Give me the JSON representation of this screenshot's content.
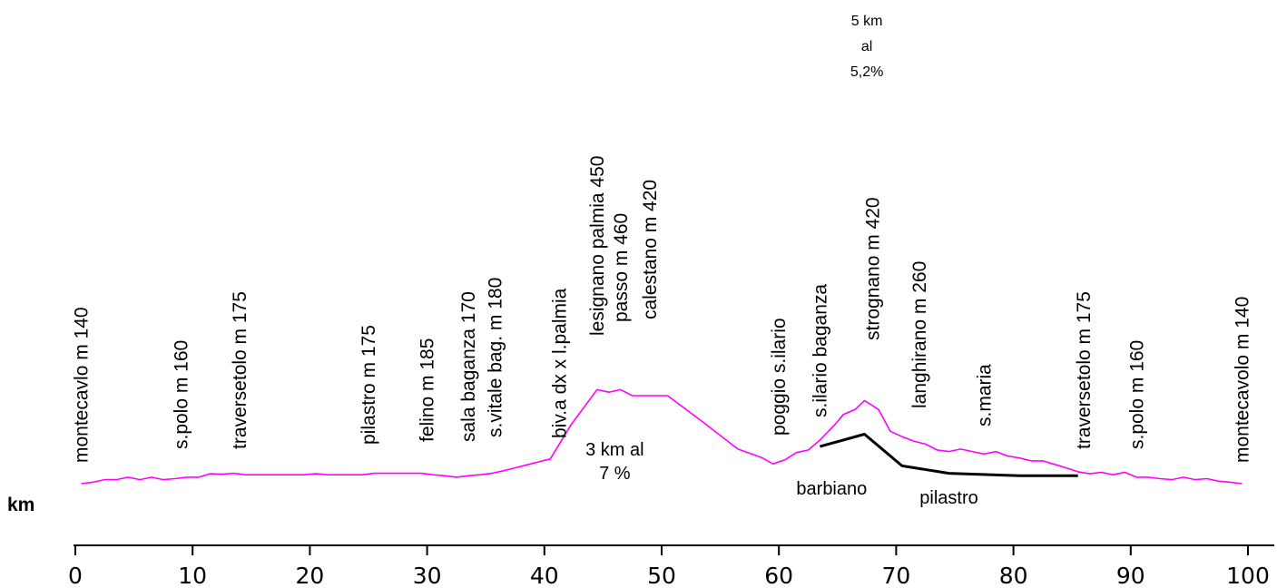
{
  "chart_data": {
    "type": "line",
    "xlabel": "km",
    "xlim": [
      0,
      100
    ],
    "ticks": [
      0,
      10,
      20,
      30,
      40,
      50,
      60,
      70,
      80,
      90,
      100
    ],
    "tick_labels": [
      "0",
      "10",
      "20",
      "30",
      "40",
      "50",
      "60",
      "70",
      "80",
      "90",
      "100"
    ],
    "series": [
      {
        "color": "#ff00ff",
        "x": [
          0.5,
          1.5,
          2.5,
          3.5,
          4.5,
          5.5,
          6.5,
          7.5,
          8.5,
          9.5,
          10.5,
          11.5,
          12.5,
          13.5,
          14.5,
          15.5,
          16.5,
          17.5,
          18.5,
          19.5,
          20.5,
          21.5,
          22.5,
          23.5,
          24.5,
          25.5,
          26.5,
          27.5,
          28.5,
          29.5,
          30.5,
          31.5,
          32.5,
          33.5,
          34.5,
          35.5,
          36.5,
          37.5,
          38.5,
          39.5,
          40.5,
          42.3,
          44.5,
          45.5,
          46.5,
          47.5,
          48.5,
          49.5,
          50.5,
          53.5,
          56.5,
          58.5,
          59.5,
          60.5,
          61.5,
          62.5,
          63.5,
          64.8,
          65.5,
          66.5,
          67.3,
          68.5,
          69.5,
          70.5,
          71.5,
          72.5,
          73.5,
          74.5,
          75.5,
          76.5,
          77.5,
          78.5,
          79.5,
          80.5,
          81.5,
          82.5,
          83.5,
          84.5,
          85.5,
          86.5,
          87.5,
          88.5,
          89.5,
          90.5,
          91.5,
          92.5,
          93.5,
          94.5,
          95.5,
          96.5,
          97.5,
          98.5,
          99.5
        ],
        "y": [
          140,
          143,
          148,
          148,
          153,
          148,
          153,
          148,
          150,
          153,
          153,
          160,
          159,
          161,
          158,
          158,
          158,
          158,
          158,
          158,
          160,
          158,
          158,
          158,
          158,
          161,
          161,
          161,
          161,
          161,
          158,
          156,
          153,
          156,
          158,
          161,
          166,
          172,
          178,
          184,
          190,
          260,
          330,
          325,
          330,
          318,
          318,
          318,
          318,
          265,
          210,
          193,
          180,
          188,
          203,
          208,
          228,
          260,
          280,
          290,
          308,
          290,
          246,
          235,
          226,
          220,
          208,
          205,
          210,
          205,
          200,
          205,
          196,
          192,
          186,
          186,
          179,
          172,
          164,
          160,
          163,
          158,
          163,
          153,
          153,
          150,
          148,
          153,
          148,
          150,
          145,
          143,
          140
        ]
      },
      {
        "color": "#000000",
        "x": [
          63.5,
          67.3,
          70.5,
          74.5,
          80.5,
          85.5
        ],
        "y": [
          215,
          240,
          176,
          161,
          156,
          156
        ]
      }
    ],
    "place_labels": [
      {
        "km": 0.5,
        "text": "montecavlo m 140"
      },
      {
        "km": 9,
        "text": "s.polo m 160"
      },
      {
        "km": 14,
        "text": "traversetolo m 175"
      },
      {
        "km": 25,
        "text": "pilastro m 175"
      },
      {
        "km": 30,
        "text": "felino m 185"
      },
      {
        "km": 33.5,
        "text": "sala baganza 170"
      },
      {
        "km": 35.8,
        "text": "s.vitale bag. m 180"
      },
      {
        "km": 41.3,
        "text": "biv.a dx x l.palmia"
      },
      {
        "km": 44.5,
        "text": "lesignano palmia 450"
      },
      {
        "km": 46.5,
        "text": "passo m 460"
      },
      {
        "km": 49,
        "text": "calestano m 420"
      },
      {
        "km": 60,
        "text": "poggio s.ilario"
      },
      {
        "km": 63.5,
        "text": "s.ilario baganza"
      },
      {
        "km": 68,
        "text": "strognano m 420"
      },
      {
        "km": 72,
        "text": "langhirano m 260"
      },
      {
        "km": 77.5,
        "text": "s.maria"
      },
      {
        "km": 86,
        "text": "traversetolo m 175"
      },
      {
        "km": 90.5,
        "text": "s.polo m 160"
      },
      {
        "km": 99.5,
        "text": "montecavolo m 140"
      }
    ],
    "annotations": [
      {
        "km": 46,
        "lines": [
          "3 km al",
          "7 %"
        ]
      },
      {
        "km": 67.5,
        "lines": [
          "5 km",
          "al",
          "5,2%"
        ]
      },
      {
        "km": 64.5,
        "lines": [
          "barbiano"
        ]
      },
      {
        "km": 74.5,
        "lines": [
          "pilastro"
        ]
      }
    ]
  }
}
